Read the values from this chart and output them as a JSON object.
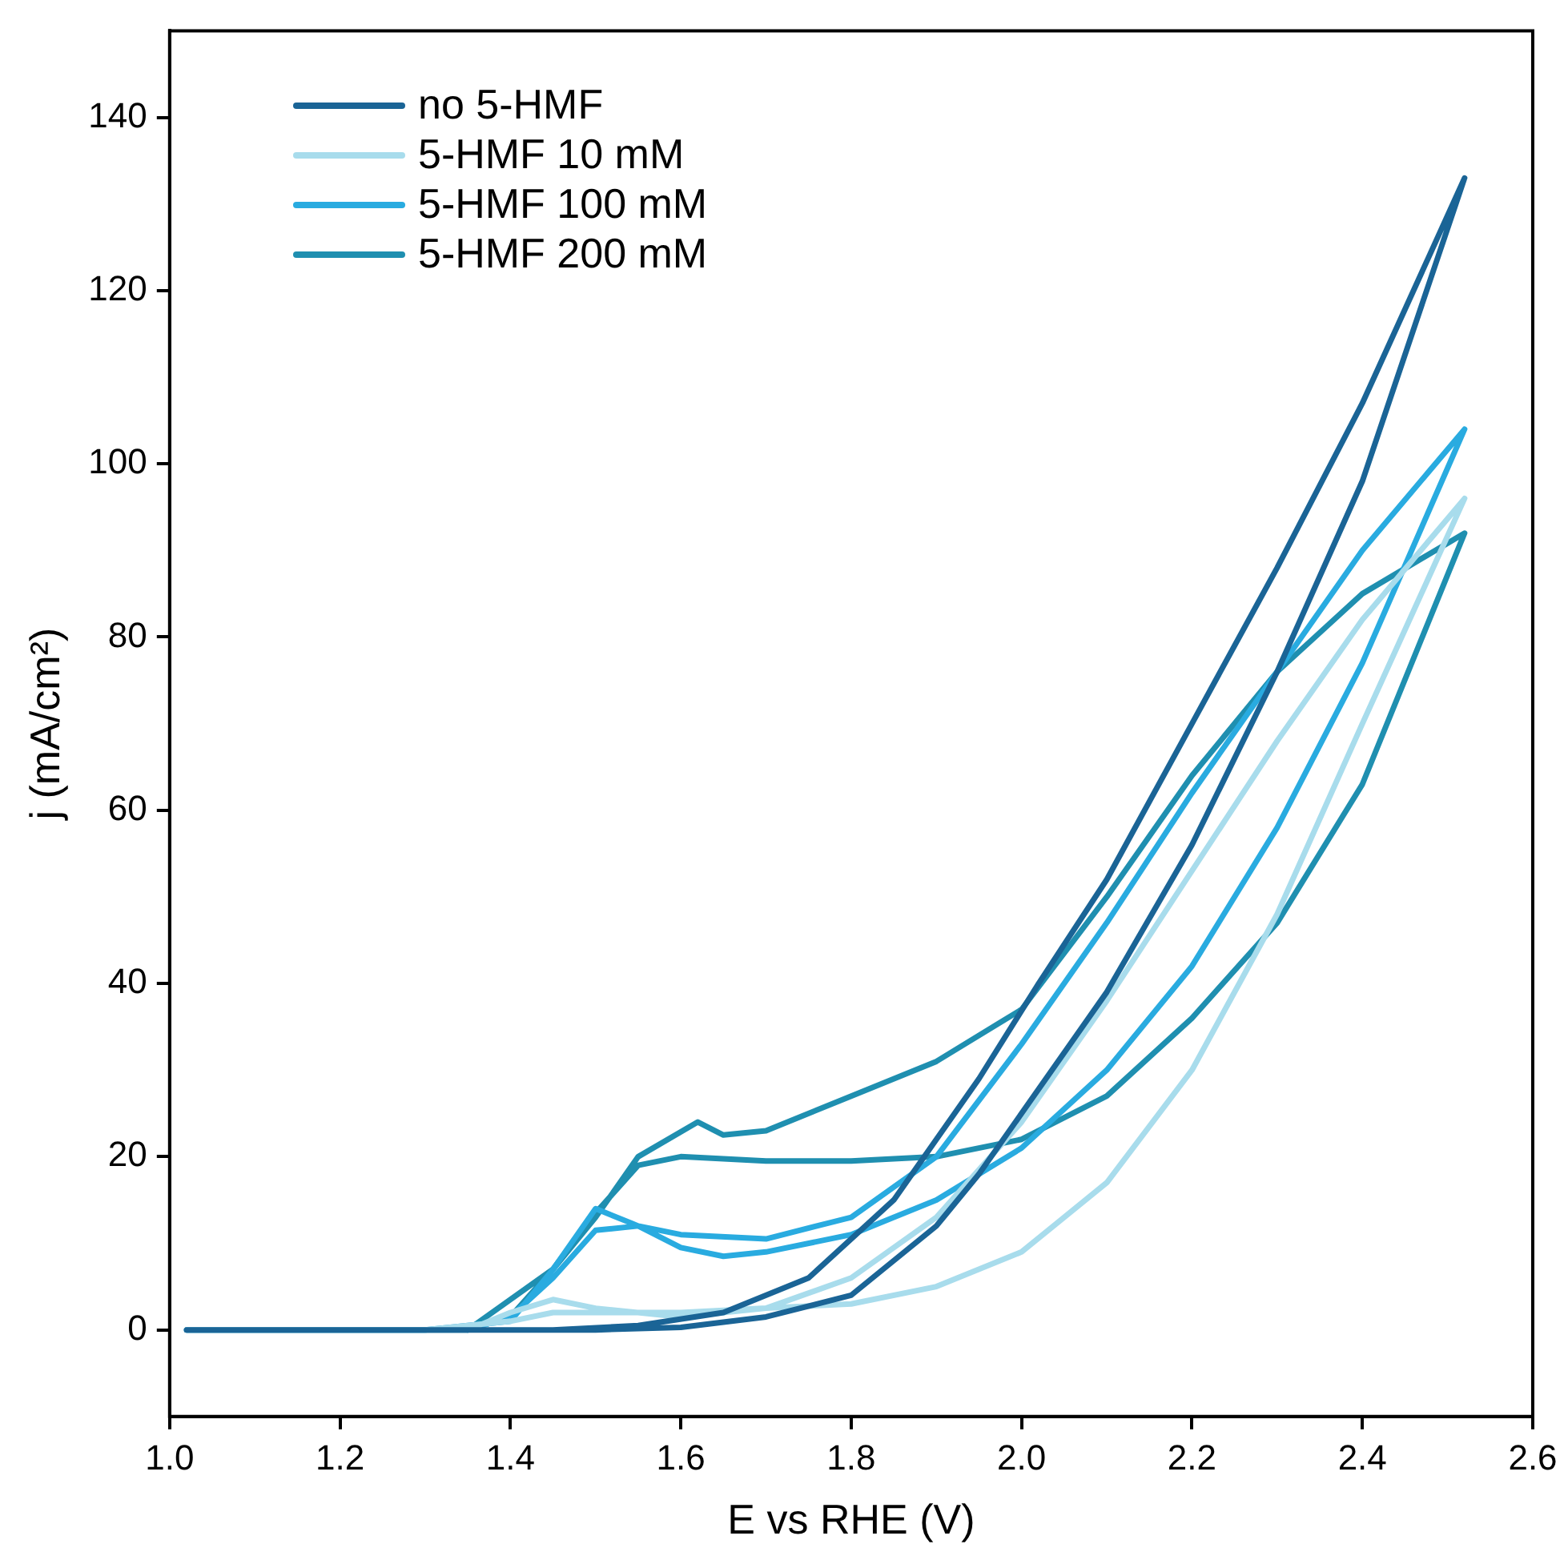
{
  "chart_data": {
    "type": "line",
    "xlabel": "E vs RHE (V)",
    "ylabel": "j (mA/cm²)",
    "xlim": [
      1.0,
      2.6
    ],
    "xticks": [
      {
        "value": 1,
        "label": "1.0"
      },
      1.2,
      1.4,
      1.6,
      1.8,
      {
        "value": 2,
        "label": "2.0"
      },
      2.2,
      2.4,
      2.6
    ],
    "ylim": [
      -10,
      150
    ],
    "yticks": [
      0,
      20,
      40,
      60,
      80,
      100,
      120,
      140
    ],
    "grid": false,
    "legend": "top left",
    "marker": "none",
    "line_style": "solid",
    "series": [
      {
        "name": "no 5-HMF",
        "color": "#1a6496",
        "x": [
          1.02,
          1.3,
          1.5,
          1.6,
          1.7,
          1.8,
          1.9,
          1.95,
          2.0,
          2.1,
          2.2,
          2.3,
          2.4,
          2.52,
          2.4,
          2.3,
          2.2,
          2.1,
          2.02,
          1.95,
          1.85,
          1.75,
          1.65,
          1.55,
          1.45
        ],
        "values": [
          0,
          0,
          0,
          0.3,
          1.5,
          4,
          12,
          18,
          25,
          39,
          56,
          76,
          98,
          133,
          107,
          88,
          70,
          52,
          40,
          29,
          15,
          6,
          2,
          0.5,
          0
        ]
      },
      {
        "name": "5-HMF 10 mM",
        "color": "#a8dcec",
        "x": [
          1.02,
          1.3,
          1.4,
          1.45,
          1.5,
          1.6,
          1.7,
          1.8,
          1.9,
          2.0,
          2.1,
          2.2,
          2.3,
          2.4,
          2.52,
          2.4,
          2.3,
          2.2,
          2.1,
          2.0,
          1.9,
          1.8,
          1.7,
          1.6,
          1.5,
          1.45,
          1.4,
          1.35
        ],
        "values": [
          0,
          0,
          1,
          2,
          2,
          2,
          2.5,
          3,
          5,
          9,
          17,
          30,
          48,
          70,
          96,
          82,
          68,
          53,
          38,
          24,
          13,
          6,
          2.5,
          1.5,
          2.5,
          3.5,
          2,
          0
        ]
      },
      {
        "name": "5-HMF 100 mM",
        "color": "#29abe0",
        "x": [
          1.02,
          1.3,
          1.4,
          1.45,
          1.5,
          1.55,
          1.6,
          1.65,
          1.7,
          1.8,
          1.9,
          2.0,
          2.1,
          2.2,
          2.3,
          2.4,
          2.52,
          2.4,
          2.3,
          2.2,
          2.1,
          2.0,
          1.9,
          1.8,
          1.7,
          1.6,
          1.55,
          1.5,
          1.45,
          1.4,
          1.35
        ],
        "values": [
          0,
          0,
          1,
          7,
          14,
          12,
          9.5,
          8.5,
          9,
          11,
          15,
          21,
          30,
          42,
          58,
          77,
          104,
          90,
          76,
          62,
          47,
          33,
          20,
          13,
          10.5,
          11,
          12,
          11.5,
          6,
          1.5,
          0
        ]
      },
      {
        "name": "5-HMF 200 mM",
        "color": "#1f8fb0",
        "x": [
          1.02,
          1.3,
          1.35,
          1.45,
          1.5,
          1.55,
          1.6,
          1.7,
          1.8,
          1.9,
          2.0,
          2.1,
          2.2,
          2.3,
          2.4,
          2.52,
          2.4,
          2.3,
          2.2,
          2.1,
          2.0,
          1.9,
          1.8,
          1.7,
          1.65,
          1.62,
          1.55,
          1.5,
          1.45,
          1.4,
          1.35
        ],
        "values": [
          0,
          0,
          0,
          7,
          13.5,
          19,
          20,
          19.5,
          19.5,
          20,
          22,
          27,
          36,
          47,
          63,
          92,
          85,
          76,
          64,
          50,
          37,
          31,
          27,
          23,
          22.5,
          24,
          20,
          13,
          7,
          1.5,
          0
        ]
      }
    ]
  }
}
